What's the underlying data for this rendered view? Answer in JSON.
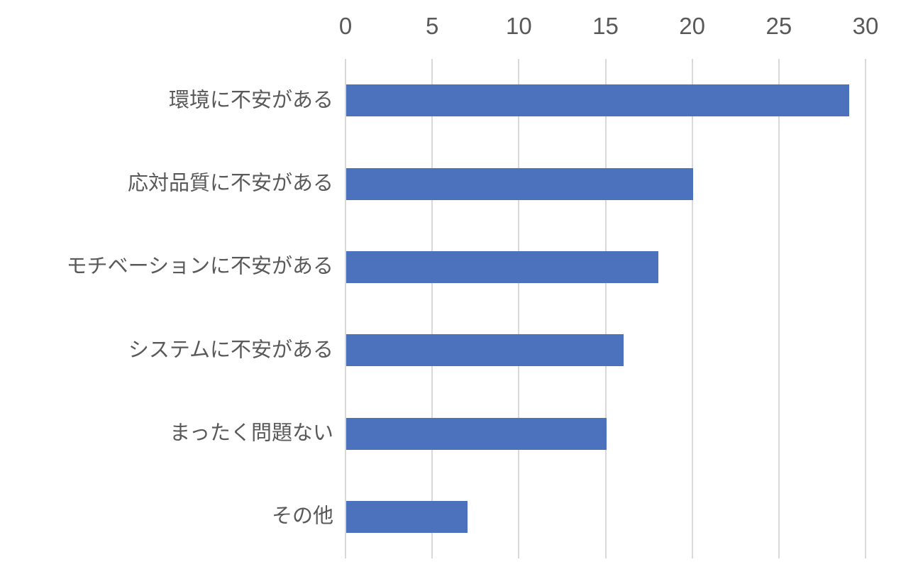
{
  "chart_data": {
    "type": "bar",
    "orientation": "horizontal",
    "title": "",
    "xlabel": "",
    "ylabel": "",
    "categories": [
      "環境に不安がある",
      "応対品質に不安がある",
      "モチベーションに不安がある",
      "システムに不安がある",
      "まったく問題ない",
      "その他"
    ],
    "values": [
      29,
      20,
      18,
      16,
      15,
      7
    ],
    "xlim": [
      0,
      30
    ],
    "xticks": [
      0,
      5,
      10,
      15,
      20,
      25,
      30
    ],
    "tick_labels": [
      "0",
      "5",
      "10",
      "15",
      "20",
      "25",
      "30"
    ],
    "grid": true,
    "legend": false,
    "axis_position": "top",
    "colors": {
      "bar": "#4C72BE",
      "gridline": "#D9D9D9",
      "tick_label": "#595959",
      "category_label": "#595959",
      "background": "#FFFFFF"
    }
  }
}
